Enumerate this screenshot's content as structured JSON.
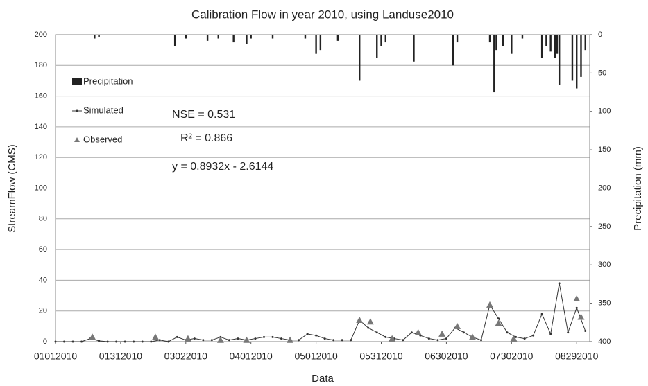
{
  "chart_data": {
    "type": "combo",
    "title": "Calibration Flow in year 2010, using Landuse2010",
    "xlabel": "Data",
    "ylabel": "StreamFlow (CMS)",
    "y2label": "Precipitation (mm)",
    "annotations": [
      "NSE = 0.531",
      "R² = 0.866",
      "y = 0.8932x - 2.6144"
    ],
    "xlim": [
      0,
      246
    ],
    "xticks": [
      {
        "value": 0,
        "label": "01012010"
      },
      {
        "value": 30,
        "label": "01312010"
      },
      {
        "value": 60,
        "label": "03022010"
      },
      {
        "value": 90,
        "label": "04012010"
      },
      {
        "value": 120,
        "label": "05012010"
      },
      {
        "value": 150,
        "label": "05312010"
      },
      {
        "value": 180,
        "label": "06302010"
      },
      {
        "value": 210,
        "label": "07302010"
      },
      {
        "value": 240,
        "label": "08292010"
      }
    ],
    "ylim": [
      0,
      200
    ],
    "yticks": [
      0,
      20,
      40,
      60,
      80,
      100,
      120,
      140,
      160,
      180,
      200
    ],
    "y2lim": [
      0,
      400
    ],
    "y2ticks": [
      0,
      50,
      100,
      150,
      200,
      250,
      300,
      350,
      400
    ],
    "y2_inverted": true,
    "grid": true,
    "legend": "upper left",
    "series": [
      {
        "name": "Precipitation",
        "type": "bar",
        "axis": "y2",
        "color": "#222222",
        "x": [
          18,
          20,
          55,
          60,
          70,
          75,
          82,
          88,
          90,
          100,
          115,
          120,
          122,
          130,
          140,
          148,
          150,
          152,
          165,
          183,
          185,
          200,
          202,
          203,
          206,
          210,
          215,
          224,
          226,
          228,
          230,
          231,
          232,
          238,
          240,
          242,
          244
        ],
        "values": [
          5,
          3,
          15,
          5,
          8,
          5,
          10,
          12,
          5,
          5,
          5,
          25,
          20,
          8,
          60,
          30,
          15,
          10,
          35,
          40,
          10,
          10,
          75,
          20,
          15,
          25,
          5,
          30,
          15,
          22,
          30,
          25,
          65,
          60,
          70,
          55,
          20
        ]
      },
      {
        "name": "Simulated",
        "type": "line",
        "color": "#333333",
        "x": [
          0,
          4,
          8,
          12,
          16,
          20,
          24,
          28,
          32,
          36,
          40,
          44,
          48,
          52,
          56,
          60,
          64,
          68,
          72,
          76,
          80,
          84,
          88,
          92,
          96,
          100,
          104,
          108,
          112,
          116,
          120,
          124,
          128,
          132,
          136,
          140,
          144,
          148,
          152,
          156,
          160,
          164,
          168,
          172,
          176,
          180,
          184,
          188,
          192,
          196,
          200,
          204,
          208,
          212,
          216,
          220,
          224,
          228,
          232,
          236,
          240,
          244
        ],
        "values": [
          0,
          0,
          0,
          0,
          2,
          0.5,
          0,
          0,
          0,
          0,
          0,
          0,
          1,
          0,
          3,
          1,
          2,
          1,
          1,
          3,
          1,
          2,
          1,
          2,
          3,
          3,
          2,
          1,
          1,
          5,
          4,
          2,
          1,
          1,
          1,
          14,
          9,
          6,
          3,
          2,
          1,
          6,
          4,
          2,
          1,
          2,
          9,
          6,
          3,
          1,
          24,
          15,
          6,
          3,
          2,
          4,
          18,
          5,
          38,
          6,
          22,
          7
        ]
      },
      {
        "name": "Observed",
        "type": "scatter",
        "color": "#777777",
        "x": [
          17,
          46,
          61,
          76,
          88,
          108,
          140,
          145,
          155,
          167,
          178,
          185,
          192,
          200,
          204,
          211,
          240,
          242
        ],
        "values": [
          3,
          3,
          2,
          1,
          1,
          1,
          14,
          13,
          2,
          6,
          5,
          10,
          3,
          24,
          12,
          2,
          28,
          16
        ]
      }
    ]
  }
}
